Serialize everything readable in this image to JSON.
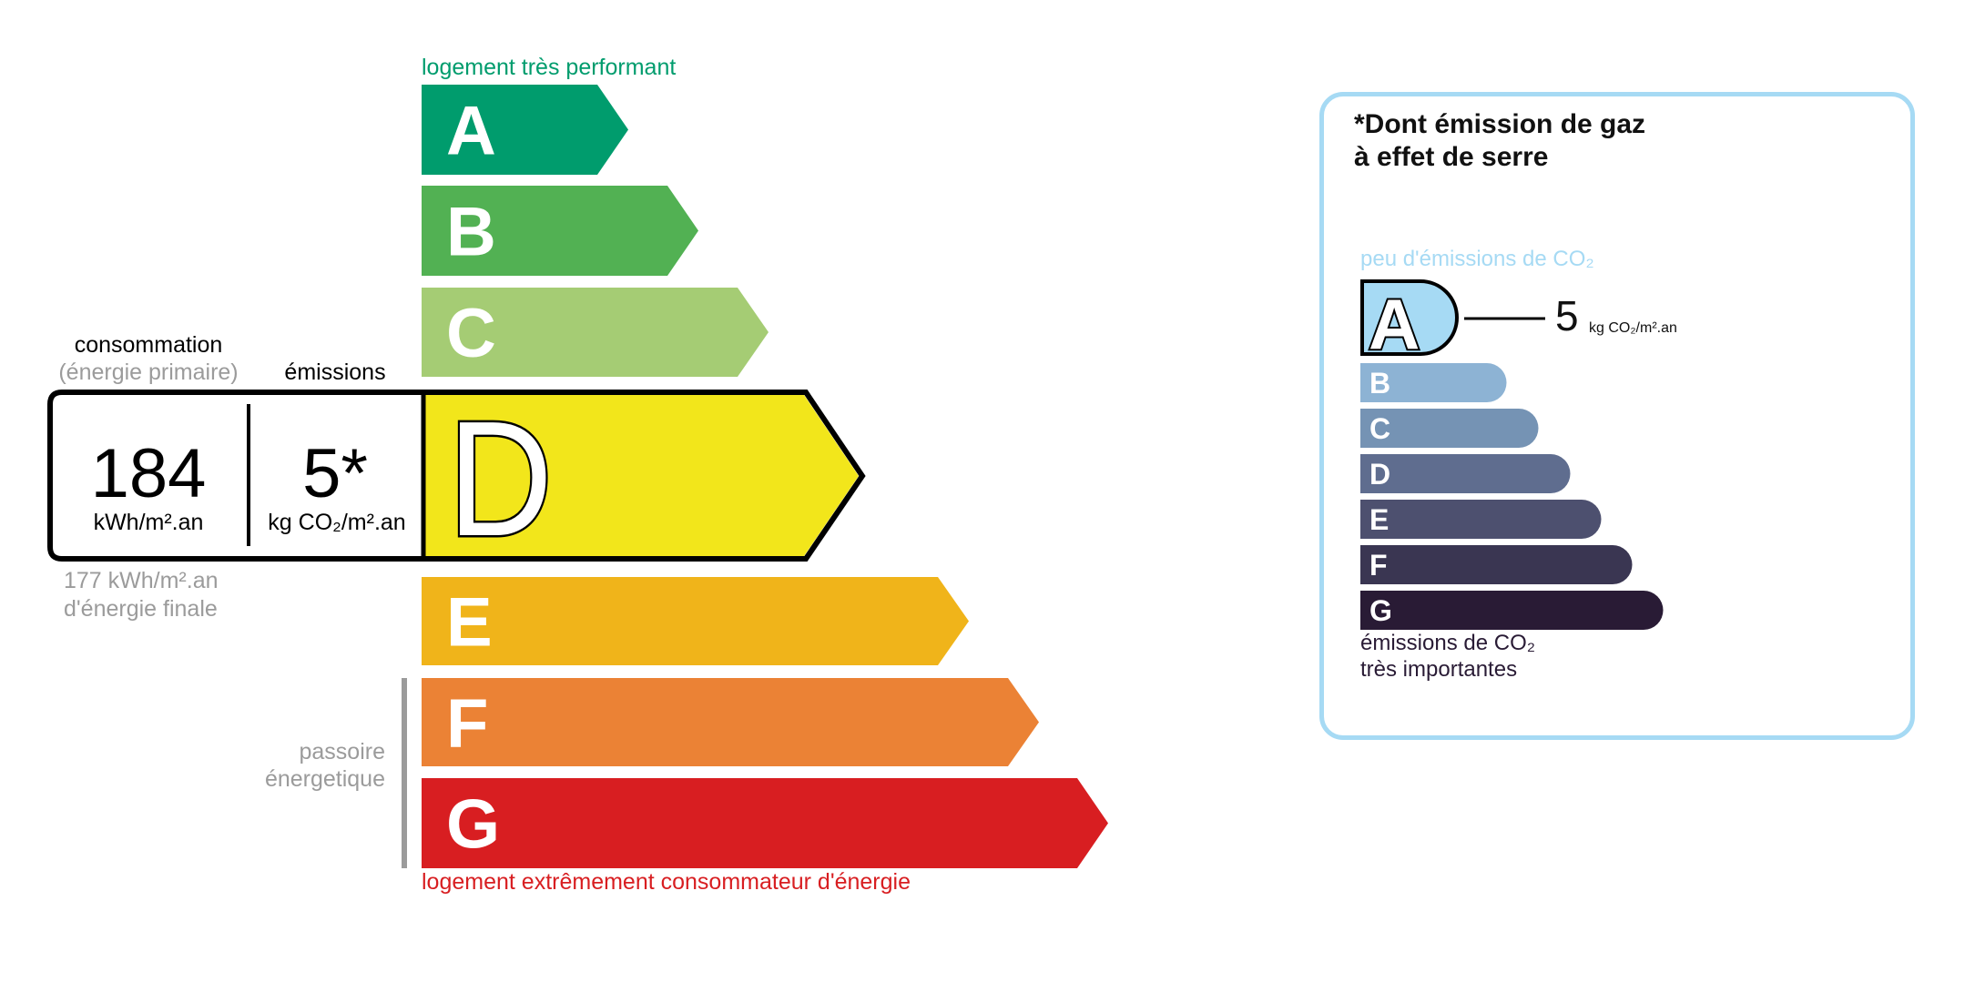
{
  "energy": {
    "top_label": "logement très performant",
    "bottom_label": "logement extrêmement consommateur d'énergie",
    "passoire_label_line1": "passoire",
    "passoire_label_line2": "énergetique",
    "classes": [
      "A",
      "B",
      "C",
      "D",
      "E",
      "F",
      "G"
    ],
    "current_class": "D",
    "colors": {
      "A": "#009c6d",
      "B": "#52b153",
      "C": "#a5cc74",
      "D": "#f2e61b",
      "E": "#f0b41a",
      "F": "#eb8235",
      "G": "#d81e21"
    },
    "top_label_color": "#009c6d",
    "bottom_label_color": "#d81e21"
  },
  "consumption": {
    "heading": "consommation",
    "subheading": "(énergie primaire)",
    "value": "184",
    "unit": "kWh/m².an",
    "final_value": "177 kWh/m².an",
    "final_label": "d'énergie finale"
  },
  "emissions": {
    "heading": "émissions",
    "value": "5*",
    "unit": "kg CO₂/m².an"
  },
  "ges_panel": {
    "title_line1": "*Dont émission de gaz",
    "title_line2": "à effet de serre",
    "top_label": "peu d'émissions de CO₂",
    "bottom_label_line1": "émissions de CO₂",
    "bottom_label_line2": "très importantes",
    "classes": [
      "A",
      "B",
      "C",
      "D",
      "E",
      "F",
      "G"
    ],
    "current_class": "A",
    "value": "5",
    "unit": "kg CO₂/m².an",
    "colors": {
      "A": "#a6daf4",
      "B": "#8db3d4",
      "C": "#7593b4",
      "D": "#5f6d8f",
      "E": "#4d506f",
      "F": "#3a3652",
      "G": "#291b35"
    },
    "border_color": "#a6daf4"
  }
}
